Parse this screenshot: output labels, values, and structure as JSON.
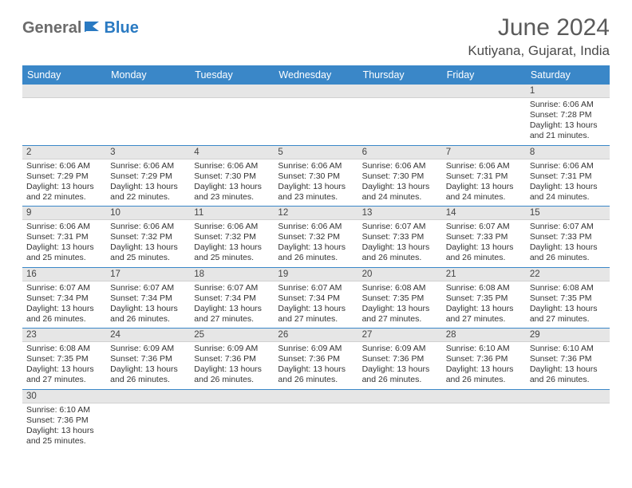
{
  "logo": {
    "text1": "General",
    "text2": "Blue"
  },
  "title": "June 2024",
  "location": "Kutiyana, Gujarat, India",
  "style": {
    "header_bg": "#3a87c8",
    "header_fg": "#ffffff",
    "daynum_bg": "#e6e6e6",
    "row_border": "#3a87c8",
    "page_bg": "#ffffff",
    "title_color": "#5a5a5a",
    "body_font_size": 10.5,
    "header_font_size": 12.5,
    "title_font_size": 30
  },
  "weekdays": [
    "Sunday",
    "Monday",
    "Tuesday",
    "Wednesday",
    "Thursday",
    "Friday",
    "Saturday"
  ],
  "weeks": [
    [
      null,
      null,
      null,
      null,
      null,
      null,
      {
        "n": "1",
        "sr": "6:06 AM",
        "ss": "7:28 PM",
        "dl": "13 hours and 21 minutes."
      }
    ],
    [
      {
        "n": "2",
        "sr": "6:06 AM",
        "ss": "7:29 PM",
        "dl": "13 hours and 22 minutes."
      },
      {
        "n": "3",
        "sr": "6:06 AM",
        "ss": "7:29 PM",
        "dl": "13 hours and 22 minutes."
      },
      {
        "n": "4",
        "sr": "6:06 AM",
        "ss": "7:30 PM",
        "dl": "13 hours and 23 minutes."
      },
      {
        "n": "5",
        "sr": "6:06 AM",
        "ss": "7:30 PM",
        "dl": "13 hours and 23 minutes."
      },
      {
        "n": "6",
        "sr": "6:06 AM",
        "ss": "7:30 PM",
        "dl": "13 hours and 24 minutes."
      },
      {
        "n": "7",
        "sr": "6:06 AM",
        "ss": "7:31 PM",
        "dl": "13 hours and 24 minutes."
      },
      {
        "n": "8",
        "sr": "6:06 AM",
        "ss": "7:31 PM",
        "dl": "13 hours and 24 minutes."
      }
    ],
    [
      {
        "n": "9",
        "sr": "6:06 AM",
        "ss": "7:31 PM",
        "dl": "13 hours and 25 minutes."
      },
      {
        "n": "10",
        "sr": "6:06 AM",
        "ss": "7:32 PM",
        "dl": "13 hours and 25 minutes."
      },
      {
        "n": "11",
        "sr": "6:06 AM",
        "ss": "7:32 PM",
        "dl": "13 hours and 25 minutes."
      },
      {
        "n": "12",
        "sr": "6:06 AM",
        "ss": "7:32 PM",
        "dl": "13 hours and 26 minutes."
      },
      {
        "n": "13",
        "sr": "6:07 AM",
        "ss": "7:33 PM",
        "dl": "13 hours and 26 minutes."
      },
      {
        "n": "14",
        "sr": "6:07 AM",
        "ss": "7:33 PM",
        "dl": "13 hours and 26 minutes."
      },
      {
        "n": "15",
        "sr": "6:07 AM",
        "ss": "7:33 PM",
        "dl": "13 hours and 26 minutes."
      }
    ],
    [
      {
        "n": "16",
        "sr": "6:07 AM",
        "ss": "7:34 PM",
        "dl": "13 hours and 26 minutes."
      },
      {
        "n": "17",
        "sr": "6:07 AM",
        "ss": "7:34 PM",
        "dl": "13 hours and 26 minutes."
      },
      {
        "n": "18",
        "sr": "6:07 AM",
        "ss": "7:34 PM",
        "dl": "13 hours and 27 minutes."
      },
      {
        "n": "19",
        "sr": "6:07 AM",
        "ss": "7:34 PM",
        "dl": "13 hours and 27 minutes."
      },
      {
        "n": "20",
        "sr": "6:08 AM",
        "ss": "7:35 PM",
        "dl": "13 hours and 27 minutes."
      },
      {
        "n": "21",
        "sr": "6:08 AM",
        "ss": "7:35 PM",
        "dl": "13 hours and 27 minutes."
      },
      {
        "n": "22",
        "sr": "6:08 AM",
        "ss": "7:35 PM",
        "dl": "13 hours and 27 minutes."
      }
    ],
    [
      {
        "n": "23",
        "sr": "6:08 AM",
        "ss": "7:35 PM",
        "dl": "13 hours and 27 minutes."
      },
      {
        "n": "24",
        "sr": "6:09 AM",
        "ss": "7:36 PM",
        "dl": "13 hours and 26 minutes."
      },
      {
        "n": "25",
        "sr": "6:09 AM",
        "ss": "7:36 PM",
        "dl": "13 hours and 26 minutes."
      },
      {
        "n": "26",
        "sr": "6:09 AM",
        "ss": "7:36 PM",
        "dl": "13 hours and 26 minutes."
      },
      {
        "n": "27",
        "sr": "6:09 AM",
        "ss": "7:36 PM",
        "dl": "13 hours and 26 minutes."
      },
      {
        "n": "28",
        "sr": "6:10 AM",
        "ss": "7:36 PM",
        "dl": "13 hours and 26 minutes."
      },
      {
        "n": "29",
        "sr": "6:10 AM",
        "ss": "7:36 PM",
        "dl": "13 hours and 26 minutes."
      }
    ],
    [
      {
        "n": "30",
        "sr": "6:10 AM",
        "ss": "7:36 PM",
        "dl": "13 hours and 25 minutes."
      },
      null,
      null,
      null,
      null,
      null,
      null
    ]
  ],
  "labels": {
    "sunrise": "Sunrise:",
    "sunset": "Sunset:",
    "daylight": "Daylight:"
  }
}
